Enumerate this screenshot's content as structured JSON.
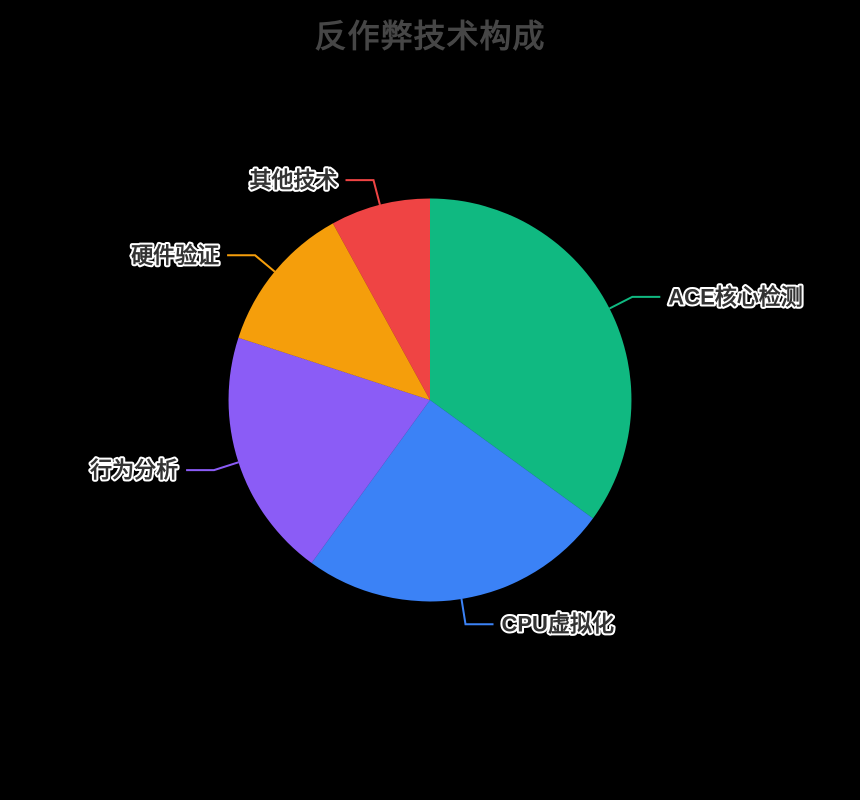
{
  "page": {
    "background_color": "#000000"
  },
  "chart_data": {
    "type": "pie",
    "title": "反作弊技术构成",
    "title_color": "#464646",
    "legend_position": "none",
    "labels_position": "outside-with-leader-lines",
    "label_text_color": "#333333",
    "label_outline_color": "#ffffff",
    "start_angle_deg": 90,
    "direction": "clockwise",
    "total": 100,
    "slices": [
      {
        "key": "ace-core-detection",
        "label": "ACE核心检测",
        "value": 35,
        "color": "#10B981"
      },
      {
        "key": "cpu-virtualization",
        "label": "CPU虚拟化",
        "value": 25,
        "color": "#3B82F6"
      },
      {
        "key": "behavior-analysis",
        "label": "行为分析",
        "value": 20,
        "color": "#8B5CF6"
      },
      {
        "key": "hardware-verification",
        "label": "硬件验证",
        "value": 12,
        "color": "#F59E0B"
      },
      {
        "key": "other-tech",
        "label": "其他技术",
        "value": 8,
        "color": "#EF4444"
      }
    ]
  }
}
